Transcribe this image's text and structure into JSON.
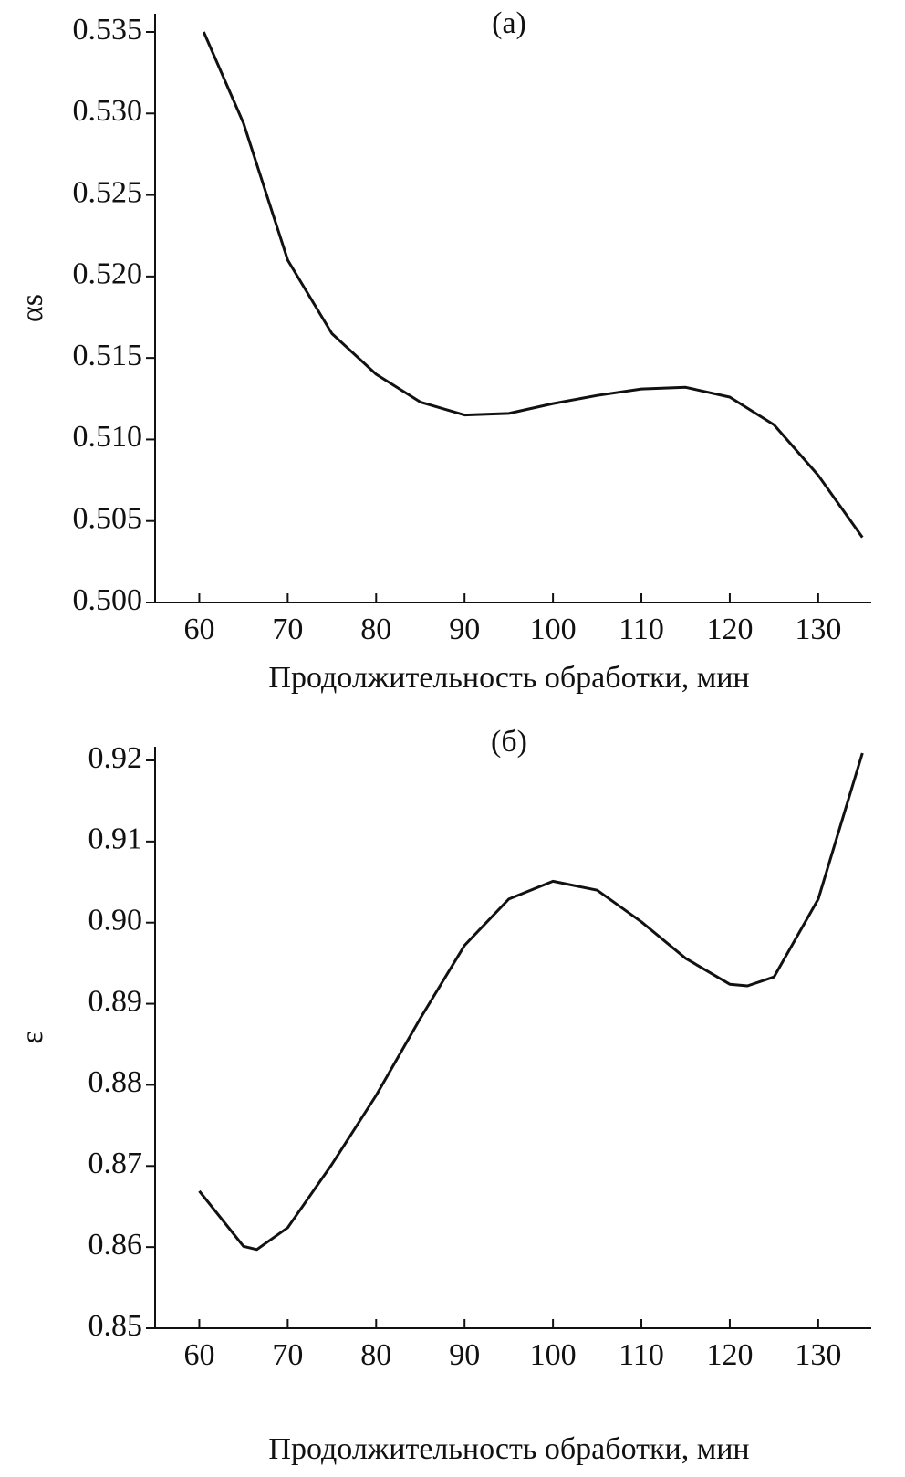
{
  "chart_data": [
    {
      "type": "line",
      "title": "(a)",
      "ylabel": "αs",
      "xlabel": "Продолжительность обработки, мин",
      "x": [
        60.5,
        65,
        70,
        75,
        80,
        85,
        90,
        95,
        100,
        105,
        110,
        115,
        120,
        125,
        130,
        135
      ],
      "values": [
        0.535,
        0.5294,
        0.521,
        0.5165,
        0.514,
        0.5123,
        0.5115,
        0.5116,
        0.5122,
        0.5127,
        0.5131,
        0.5132,
        0.5126,
        0.5109,
        0.5078,
        0.504
      ],
      "color": "#111111",
      "xlim": [
        55,
        136
      ],
      "xticks": [
        60,
        70,
        80,
        90,
        100,
        110,
        120,
        130
      ],
      "ylim": [
        0.5,
        0.535
      ],
      "yticks": [
        {
          "value": 0.5,
          "label": "0.500"
        },
        0.505,
        {
          "value": 0.51,
          "label": "0.510"
        },
        0.515,
        {
          "value": 0.52,
          "label": "0.520"
        },
        0.525,
        {
          "value": 0.53,
          "label": "0.530"
        },
        0.535
      ]
    },
    {
      "type": "line",
      "title": "(б)",
      "ylabel": "ε",
      "xlabel": "Продолжительность обработки, мин",
      "x": [
        60,
        65,
        66.5,
        70,
        75,
        80,
        85,
        90,
        95,
        100,
        105,
        110,
        115,
        120,
        122,
        125,
        130,
        135
      ],
      "values": [
        0.8669,
        0.8601,
        0.8597,
        0.8624,
        0.8702,
        0.8787,
        0.8882,
        0.8972,
        0.9029,
        0.9051,
        0.904,
        0.9001,
        0.8956,
        0.8924,
        0.8922,
        0.8933,
        0.9029,
        0.9209
      ],
      "color": "#111111",
      "xlim": [
        55,
        136
      ],
      "xticks": [
        60,
        70,
        80,
        90,
        100,
        110,
        120,
        130
      ],
      "ylim": [
        0.85,
        0.92
      ],
      "yticks": [
        0.85,
        0.86,
        0.87,
        0.88,
        0.89,
        {
          "value": 0.9,
          "label": "0.90"
        },
        0.91,
        0.92
      ]
    }
  ]
}
